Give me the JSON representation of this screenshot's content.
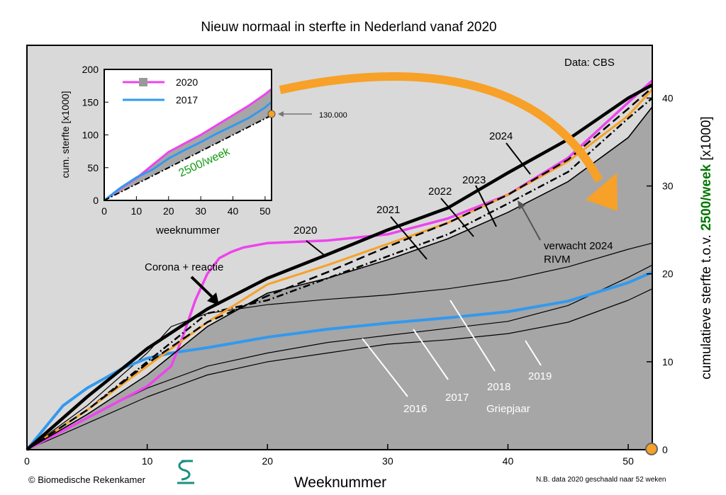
{
  "chart_data": {
    "type": "line",
    "title": "Nieuw normaal in sterfte in Nederland vanaf 2020",
    "xlabel": "Weeknummer",
    "ylabel_prefix": "cumulatieve sterfte t.o.v. ",
    "ylabel_highlight": "2500/week",
    "ylabel_suffix": " [x1000]",
    "source": "Data: CBS",
    "copyright": "© Biomedische Rekenkamer",
    "note": "N.B. data 2020 geschaald naar 52 weken",
    "xlim": [
      0,
      52
    ],
    "ylim": [
      0,
      46
    ],
    "xticks": [
      "0",
      "10",
      "20",
      "30",
      "40",
      "50"
    ],
    "yticks": [
      "0",
      "10",
      "20",
      "30",
      "40"
    ],
    "colors": {
      "background": "#d9d9d9",
      "fill": "#a6a6a6",
      "s2020": "#ee44ee",
      "s2017": "#3399ee",
      "s2024": "#000000",
      "highlight": "#f7a128",
      "green": "#007700"
    },
    "series": [
      {
        "name": "2016",
        "x": [
          0,
          5,
          10,
          15,
          20,
          25,
          30,
          35,
          40,
          45,
          50,
          52
        ],
        "y": [
          0,
          3,
          6,
          8.5,
          10,
          11,
          12,
          12.5,
          13.2,
          14.5,
          17,
          18.3
        ]
      },
      {
        "name": "2018",
        "x": [
          0,
          5,
          10,
          12,
          15,
          20,
          25,
          30,
          35,
          40,
          45,
          50,
          52
        ],
        "y": [
          0,
          5,
          11,
          14,
          15.5,
          16.5,
          17.1,
          17.6,
          18.3,
          19.3,
          20.8,
          22.8,
          23.5
        ]
      },
      {
        "name": "2019",
        "x": [
          0,
          5,
          10,
          15,
          20,
          25,
          30,
          35,
          40,
          45,
          50,
          52
        ],
        "y": [
          0,
          3.7,
          7,
          9.5,
          11,
          12.2,
          13,
          13.8,
          14.6,
          16.4,
          19.6,
          21
        ]
      },
      {
        "name": "2017",
        "x": [
          0,
          3,
          5,
          8,
          10,
          12,
          15,
          20,
          25,
          30,
          35,
          40,
          45,
          50,
          52
        ],
        "y": [
          0,
          5,
          7,
          9.3,
          10.4,
          11,
          11.6,
          12.8,
          13.7,
          14.4,
          15,
          15.7,
          16.9,
          19,
          20.2
        ]
      },
      {
        "name": "2020",
        "x": [
          0,
          5,
          10,
          12,
          13,
          14,
          15,
          16,
          17,
          18,
          20,
          25,
          30,
          35,
          40,
          45,
          50,
          52
        ],
        "y": [
          0,
          3.6,
          7.2,
          9.5,
          13,
          17,
          20,
          21.8,
          22.5,
          23,
          23.5,
          23.8,
          24.5,
          26.3,
          29,
          33.2,
          39.5,
          42
        ]
      },
      {
        "name": "2021",
        "x": [
          0,
          5,
          10,
          15,
          20,
          25,
          30,
          35,
          40,
          45,
          50,
          52
        ],
        "y": [
          0,
          4.5,
          10,
          15.5,
          17,
          19.5,
          22,
          24.5,
          28,
          31.6,
          37.7,
          40
        ]
      },
      {
        "name": "2022",
        "x": [
          0,
          5,
          10,
          15,
          20,
          25,
          30,
          35,
          40,
          45,
          50,
          52
        ],
        "y": [
          0,
          4.5,
          9.5,
          14.5,
          18.8,
          21,
          23.4,
          25.8,
          29,
          32.8,
          38,
          41
        ]
      },
      {
        "name": "2023",
        "x": [
          0,
          5,
          10,
          15,
          20,
          25,
          30,
          35,
          40,
          45,
          50,
          52
        ],
        "y": [
          0,
          4,
          8.5,
          14,
          17.8,
          19.5,
          21.6,
          24,
          27,
          30.5,
          35.5,
          39
        ]
      },
      {
        "name": "2024",
        "x": [
          0,
          5,
          10,
          15,
          20,
          25,
          30,
          35,
          40,
          45,
          50,
          52
        ],
        "y": [
          0,
          6,
          11.5,
          16,
          19.5,
          22.2,
          25,
          27.5,
          31.5,
          35.3,
          40,
          41.5
        ]
      },
      {
        "name": "verwacht 2024 RIVM",
        "x": [
          0,
          5,
          10,
          15,
          20,
          25,
          30,
          35,
          40,
          45,
          50,
          52
        ],
        "y": [
          0,
          4.5,
          9.8,
          14.5,
          17.5,
          20.2,
          23.1,
          25.8,
          29,
          33,
          38.8,
          41.2
        ]
      }
    ],
    "annotations": [
      {
        "text": "2016"
      },
      {
        "text": "2017"
      },
      {
        "text": "2018"
      },
      {
        "text": "2019"
      },
      {
        "text": "Griepjaar"
      },
      {
        "text": "2020"
      },
      {
        "text": "2021"
      },
      {
        "text": "2022"
      },
      {
        "text": "2023"
      },
      {
        "text": "2024"
      },
      {
        "text": "Corona + reactie"
      },
      {
        "text": "verwacht 2024"
      },
      {
        "text": "RIVM"
      }
    ],
    "inset": {
      "xlabel": "weeknummer",
      "ylabel": "cum. sterfte [x1000]",
      "xlim": [
        0,
        52
      ],
      "ylim": [
        0,
        200
      ],
      "xticks": [
        "0",
        "10",
        "20",
        "30",
        "40",
        "50"
      ],
      "yticks": [
        "0",
        "50",
        "100",
        "150",
        "200"
      ],
      "legend": [
        "2020",
        "2017"
      ],
      "baseline_label": "2500/week",
      "marker_label": "130.000",
      "series": [
        {
          "name": "2020",
          "x": [
            0,
            5,
            10,
            15,
            20,
            25,
            30,
            35,
            40,
            45,
            50,
            52
          ],
          "y": [
            0,
            18,
            34,
            54,
            74,
            87,
            100,
            115,
            130,
            145,
            162,
            170
          ]
        },
        {
          "name": "2017",
          "x": [
            0,
            5,
            10,
            15,
            20,
            25,
            30,
            35,
            40,
            45,
            50,
            52
          ],
          "y": [
            0,
            19,
            35,
            47,
            64,
            77,
            89,
            102,
            114,
            126,
            142,
            150
          ]
        },
        {
          "name": "baseline",
          "x": [
            0,
            52
          ],
          "y": [
            0,
            130
          ]
        }
      ]
    }
  }
}
